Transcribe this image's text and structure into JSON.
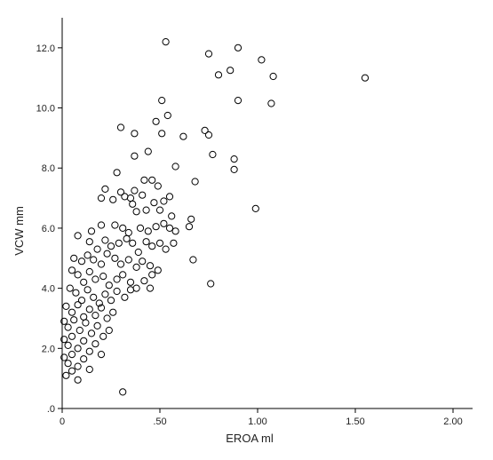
{
  "chart_data": {
    "type": "scatter",
    "title": "",
    "xlabel": "EROA ml",
    "ylabel": "VCW mm",
    "xlim": [
      0,
      2.1
    ],
    "ylim": [
      0,
      13.0
    ],
    "grid": false,
    "x_ticks": [
      {
        "value": 0,
        "label": "0"
      },
      {
        "value": 0.5,
        "label": ".50"
      },
      {
        "value": 1.0,
        "label": "1.00"
      },
      {
        "value": 1.5,
        "label": "1.50"
      },
      {
        "value": 2.0,
        "label": "2.00"
      }
    ],
    "y_ticks": [
      {
        "value": 0,
        "label": ".0"
      },
      {
        "value": 2,
        "label": "2.0"
      },
      {
        "value": 4,
        "label": "4.0"
      },
      {
        "value": 6,
        "label": "6.0"
      },
      {
        "value": 8,
        "label": "8.0"
      },
      {
        "value": 10,
        "label": "10.0"
      },
      {
        "value": 12,
        "label": "12.0"
      }
    ],
    "marker": {
      "shape": "open-circle",
      "color": "#000000"
    },
    "points": [
      [
        0.53,
        12.2
      ],
      [
        0.75,
        11.8
      ],
      [
        0.9,
        12.0
      ],
      [
        1.02,
        11.6
      ],
      [
        0.8,
        11.1
      ],
      [
        0.86,
        11.25
      ],
      [
        1.08,
        11.05
      ],
      [
        1.55,
        11.0
      ],
      [
        0.51,
        10.25
      ],
      [
        0.54,
        9.75
      ],
      [
        0.9,
        10.25
      ],
      [
        1.07,
        10.15
      ],
      [
        0.3,
        9.35
      ],
      [
        0.37,
        9.15
      ],
      [
        0.48,
        9.55
      ],
      [
        0.51,
        9.15
      ],
      [
        0.62,
        9.05
      ],
      [
        0.73,
        9.25
      ],
      [
        0.75,
        9.1
      ],
      [
        0.37,
        8.4
      ],
      [
        0.44,
        8.55
      ],
      [
        0.88,
        8.3
      ],
      [
        0.88,
        7.95
      ],
      [
        0.58,
        8.05
      ],
      [
        0.77,
        8.45
      ],
      [
        0.28,
        7.85
      ],
      [
        0.22,
        7.3
      ],
      [
        0.3,
        7.2
      ],
      [
        0.32,
        7.05
      ],
      [
        0.35,
        7.0
      ],
      [
        0.37,
        7.25
      ],
      [
        0.41,
        7.1
      ],
      [
        0.42,
        7.6
      ],
      [
        0.46,
        7.6
      ],
      [
        0.49,
        7.4
      ],
      [
        0.55,
        7.05
      ],
      [
        0.68,
        7.55
      ],
      [
        0.99,
        6.65
      ],
      [
        0.2,
        7.0
      ],
      [
        0.26,
        6.95
      ],
      [
        0.36,
        6.8
      ],
      [
        0.38,
        6.55
      ],
      [
        0.43,
        6.6
      ],
      [
        0.47,
        6.85
      ],
      [
        0.5,
        6.6
      ],
      [
        0.52,
        6.9
      ],
      [
        0.56,
        6.4
      ],
      [
        0.66,
        6.3
      ],
      [
        0.65,
        6.05
      ],
      [
        0.08,
        5.75
      ],
      [
        0.15,
        5.9
      ],
      [
        0.2,
        6.1
      ],
      [
        0.27,
        6.1
      ],
      [
        0.31,
        6.0
      ],
      [
        0.34,
        5.85
      ],
      [
        0.4,
        6.0
      ],
      [
        0.44,
        5.9
      ],
      [
        0.48,
        6.05
      ],
      [
        0.52,
        6.15
      ],
      [
        0.55,
        6.0
      ],
      [
        0.58,
        5.9
      ],
      [
        0.14,
        5.55
      ],
      [
        0.18,
        5.3
      ],
      [
        0.22,
        5.6
      ],
      [
        0.25,
        5.4
      ],
      [
        0.29,
        5.5
      ],
      [
        0.33,
        5.65
      ],
      [
        0.36,
        5.5
      ],
      [
        0.39,
        5.2
      ],
      [
        0.43,
        5.55
      ],
      [
        0.46,
        5.4
      ],
      [
        0.5,
        5.5
      ],
      [
        0.53,
        5.3
      ],
      [
        0.57,
        5.5
      ],
      [
        0.67,
        4.95
      ],
      [
        0.06,
        5.0
      ],
      [
        0.1,
        4.9
      ],
      [
        0.13,
        5.1
      ],
      [
        0.16,
        4.95
      ],
      [
        0.2,
        4.8
      ],
      [
        0.23,
        5.15
      ],
      [
        0.27,
        5.0
      ],
      [
        0.3,
        4.8
      ],
      [
        0.34,
        4.95
      ],
      [
        0.38,
        4.7
      ],
      [
        0.41,
        4.9
      ],
      [
        0.45,
        4.75
      ],
      [
        0.49,
        4.6
      ],
      [
        0.46,
        4.45
      ],
      [
        0.05,
        4.6
      ],
      [
        0.08,
        4.45
      ],
      [
        0.11,
        4.2
      ],
      [
        0.14,
        4.55
      ],
      [
        0.17,
        4.3
      ],
      [
        0.21,
        4.4
      ],
      [
        0.24,
        4.1
      ],
      [
        0.28,
        4.3
      ],
      [
        0.31,
        4.45
      ],
      [
        0.35,
        4.2
      ],
      [
        0.38,
        4.0
      ],
      [
        0.42,
        4.25
      ],
      [
        0.45,
        4.0
      ],
      [
        0.76,
        4.15
      ],
      [
        0.04,
        4.0
      ],
      [
        0.07,
        3.85
      ],
      [
        0.1,
        3.6
      ],
      [
        0.13,
        3.95
      ],
      [
        0.16,
        3.7
      ],
      [
        0.19,
        3.5
      ],
      [
        0.22,
        3.8
      ],
      [
        0.25,
        3.6
      ],
      [
        0.28,
        3.9
      ],
      [
        0.32,
        3.7
      ],
      [
        0.35,
        3.95
      ],
      [
        0.02,
        3.4
      ],
      [
        0.05,
        3.2
      ],
      [
        0.08,
        3.45
      ],
      [
        0.11,
        3.05
      ],
      [
        0.14,
        3.3
      ],
      [
        0.17,
        3.1
      ],
      [
        0.2,
        3.35
      ],
      [
        0.23,
        3.0
      ],
      [
        0.26,
        3.2
      ],
      [
        0.01,
        2.9
      ],
      [
        0.03,
        2.7
      ],
      [
        0.06,
        2.95
      ],
      [
        0.09,
        2.6
      ],
      [
        0.12,
        2.85
      ],
      [
        0.15,
        2.5
      ],
      [
        0.18,
        2.75
      ],
      [
        0.21,
        2.4
      ],
      [
        0.24,
        2.6
      ],
      [
        0.01,
        2.3
      ],
      [
        0.03,
        2.1
      ],
      [
        0.05,
        2.4
      ],
      [
        0.08,
        2.0
      ],
      [
        0.11,
        2.25
      ],
      [
        0.14,
        1.9
      ],
      [
        0.17,
        2.15
      ],
      [
        0.2,
        1.8
      ],
      [
        0.01,
        1.7
      ],
      [
        0.03,
        1.5
      ],
      [
        0.05,
        1.8
      ],
      [
        0.08,
        1.4
      ],
      [
        0.11,
        1.65
      ],
      [
        0.14,
        1.3
      ],
      [
        0.02,
        1.1
      ],
      [
        0.05,
        1.25
      ],
      [
        0.08,
        0.95
      ],
      [
        0.31,
        0.55
      ]
    ]
  }
}
